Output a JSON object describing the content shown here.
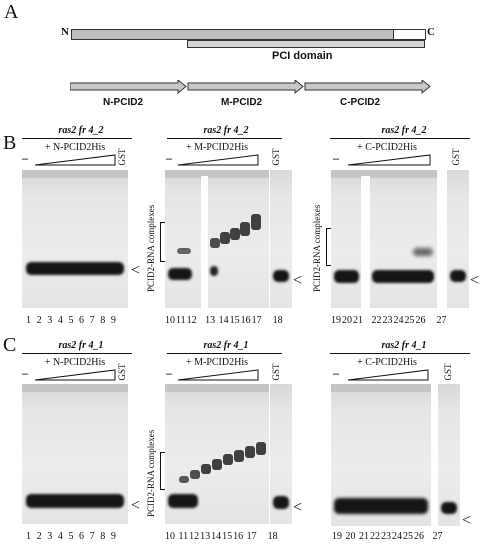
{
  "panel_a": {
    "letter": "A",
    "n_term": "N",
    "c_term": "C",
    "pci_domain": "PCI domain",
    "fragments": [
      "N-PCID2",
      "M-PCID2",
      "C-PCID2"
    ]
  },
  "panel_b": {
    "letter": "B",
    "gels": [
      {
        "title": "ras2 fr 4_2",
        "protein": "+ N-PCID2His",
        "minus": "–",
        "gst": "GST",
        "lanes": [
          "1",
          "2",
          "3",
          "4",
          "5",
          "6",
          "7",
          "8",
          "9"
        ]
      },
      {
        "title": "ras2 fr 4_2",
        "protein": "+ M-PCID2His",
        "minus": "–",
        "gst": "GST",
        "lanes": [
          "10",
          "11",
          "12",
          "13",
          "14",
          "15",
          "16",
          "17",
          "18"
        ],
        "complex_label": "PCID2-RNA complexes"
      },
      {
        "title": "ras2 fr 4_2",
        "protein": "+ C-PCID2His",
        "minus": "–",
        "gst": "GST",
        "lanes": [
          "19",
          "20",
          "21",
          "22",
          "23",
          "24",
          "25",
          "26",
          "27"
        ],
        "complex_label": "PCID2-RNA complexes"
      }
    ]
  },
  "panel_c": {
    "letter": "C",
    "gels": [
      {
        "title": "ras2 fr 4_1",
        "protein": "+ N-PCID2His",
        "minus": "–",
        "gst": "GST",
        "lanes": [
          "1",
          "2",
          "3",
          "4",
          "5",
          "6",
          "7",
          "8",
          "9"
        ]
      },
      {
        "title": "ras2 fr 4_1",
        "protein": "+ M-PCID2His",
        "minus": "–",
        "gst": "GST",
        "lanes": [
          "10",
          "11",
          "12",
          "13",
          "14",
          "15",
          "16",
          "17",
          "18"
        ],
        "complex_label": "PCID2-RNA complexes"
      },
      {
        "title": "ras2 fr 4_1",
        "protein": "+ C-PCID2His",
        "minus": "–",
        "gst": "GST",
        "lanes": [
          "19",
          "20",
          "21",
          "22",
          "23",
          "24",
          "25",
          "26",
          "27"
        ]
      }
    ]
  }
}
